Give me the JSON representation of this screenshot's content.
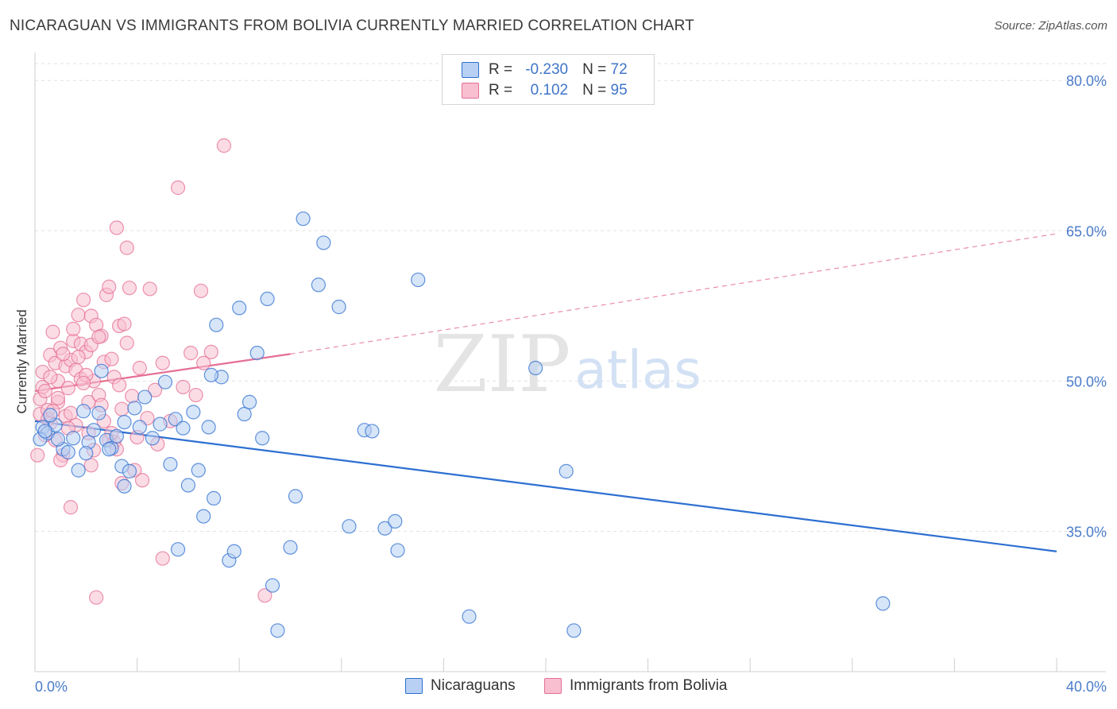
{
  "title": "NICARAGUAN VS IMMIGRANTS FROM BOLIVIA CURRENTLY MARRIED CORRELATION CHART",
  "source": "Source: ZipAtlas.com",
  "watermark": {
    "zip": "ZIP",
    "atlas": "atlas"
  },
  "colors": {
    "blue": "#2e6fd1",
    "blue_fill": "#b7d0f3",
    "pink": "#e56f94",
    "pink_fill": "#f8bfd0",
    "grid": "#e3e3e3",
    "tick": "#4a7cc9"
  },
  "legend": {
    "rows": [
      {
        "r_label": "R =",
        "r_value": "-0.230",
        "n_label": "N =",
        "n_value": "72"
      },
      {
        "r_label": "R =",
        "r_value": "0.102",
        "n_label": "N =",
        "n_value": "95"
      }
    ]
  },
  "bottom_legend": {
    "nicaraguans": "Nicaraguans",
    "bolivia": "Immigrants from Bolivia"
  },
  "chart_data": {
    "type": "scatter",
    "title": "NICARAGUAN VS IMMIGRANTS FROM BOLIVIA CURRENTLY MARRIED CORRELATION CHART",
    "xlabel": "",
    "ylabel": "Currently Married",
    "xlim": [
      0,
      40
    ],
    "ylim": [
      21,
      82
    ],
    "x_ticks": [
      {
        "value": 0,
        "label": "0.0%"
      },
      {
        "value": 40,
        "label": "40.0%"
      }
    ],
    "y_ticks": [
      {
        "value": 35,
        "label": "35.0%"
      },
      {
        "value": 50,
        "label": "50.0%"
      },
      {
        "value": 65,
        "label": "65.0%"
      },
      {
        "value": 80,
        "label": "80.0%"
      }
    ],
    "series": [
      {
        "name": "Nicaraguans",
        "color": "#2e6fd1",
        "fill": "#b7d0f3",
        "trend": {
          "x0": 0,
          "y0": 46.0,
          "x1": 40,
          "y1": 33.0
        },
        "points": [
          [
            0.3,
            45.4
          ],
          [
            0.5,
            44.8
          ],
          [
            0.8,
            45.6
          ],
          [
            1.1,
            43.2
          ],
          [
            1.5,
            44.3
          ],
          [
            1.7,
            41.1
          ],
          [
            2.1,
            43.9
          ],
          [
            2.5,
            46.8
          ],
          [
            2.8,
            44.1
          ],
          [
            3.0,
            43.3
          ],
          [
            3.2,
            44.5
          ],
          [
            3.4,
            41.5
          ],
          [
            3.5,
            39.5
          ],
          [
            3.7,
            41.0
          ],
          [
            3.5,
            45.9
          ],
          [
            3.9,
            47.3
          ],
          [
            4.1,
            45.4
          ],
          [
            4.3,
            48.4
          ],
          [
            4.6,
            44.3
          ],
          [
            4.9,
            45.7
          ],
          [
            5.1,
            49.9
          ],
          [
            5.3,
            41.7
          ],
          [
            5.5,
            46.2
          ],
          [
            5.8,
            45.3
          ],
          [
            6.0,
            39.6
          ],
          [
            6.2,
            46.9
          ],
          [
            6.4,
            41.1
          ],
          [
            6.6,
            36.5
          ],
          [
            6.8,
            45.4
          ],
          [
            7.0,
            38.3
          ],
          [
            7.1,
            55.6
          ],
          [
            7.3,
            50.4
          ],
          [
            7.6,
            32.1
          ],
          [
            7.8,
            33.0
          ],
          [
            8.0,
            57.3
          ],
          [
            8.2,
            46.7
          ],
          [
            8.4,
            47.9
          ],
          [
            8.7,
            52.8
          ],
          [
            8.9,
            44.3
          ],
          [
            9.1,
            58.2
          ],
          [
            9.3,
            29.6
          ],
          [
            9.5,
            25.1
          ],
          [
            10.0,
            33.4
          ],
          [
            10.2,
            38.5
          ],
          [
            10.5,
            66.2
          ],
          [
            11.1,
            59.6
          ],
          [
            11.3,
            63.8
          ],
          [
            11.9,
            57.4
          ],
          [
            12.3,
            35.5
          ],
          [
            12.9,
            45.1
          ],
          [
            13.2,
            45.0
          ],
          [
            13.7,
            35.3
          ],
          [
            14.1,
            36.0
          ],
          [
            14.2,
            33.1
          ],
          [
            15.0,
            60.1
          ],
          [
            17.0,
            26.5
          ],
          [
            19.6,
            51.3
          ],
          [
            20.8,
            41.0
          ],
          [
            21.1,
            25.1
          ],
          [
            33.2,
            27.8
          ],
          [
            0.2,
            44.2
          ],
          [
            0.4,
            45.0
          ],
          [
            0.9,
            44.2
          ],
          [
            1.3,
            42.9
          ],
          [
            2.0,
            42.8
          ],
          [
            2.3,
            45.1
          ],
          [
            2.6,
            51.0
          ],
          [
            2.9,
            43.2
          ],
          [
            6.9,
            50.6
          ],
          [
            5.6,
            33.2
          ],
          [
            0.6,
            46.6
          ],
          [
            1.9,
            47.0
          ]
        ]
      },
      {
        "name": "Immigrants from Bolivia",
        "color": "#e56f94",
        "fill": "#f8bfd0",
        "trend": {
          "x0": 0,
          "y0": 49.0,
          "x1": 10,
          "y1": 52.7
        },
        "trend_extended": {
          "x0": 10,
          "y0": 52.7,
          "x1": 40,
          "y1": 64.7
        },
        "points": [
          [
            0.1,
            42.6
          ],
          [
            0.2,
            46.7
          ],
          [
            0.2,
            48.2
          ],
          [
            0.3,
            49.4
          ],
          [
            0.3,
            50.9
          ],
          [
            0.4,
            44.6
          ],
          [
            0.5,
            47.1
          ],
          [
            0.6,
            45.8
          ],
          [
            0.6,
            52.6
          ],
          [
            0.7,
            54.9
          ],
          [
            0.8,
            51.8
          ],
          [
            0.9,
            50.0
          ],
          [
            0.9,
            47.9
          ],
          [
            1.0,
            53.3
          ],
          [
            1.1,
            42.6
          ],
          [
            1.2,
            51.5
          ],
          [
            1.2,
            46.5
          ],
          [
            1.3,
            49.3
          ],
          [
            1.4,
            52.1
          ],
          [
            1.4,
            37.4
          ],
          [
            1.5,
            54.0
          ],
          [
            1.6,
            45.6
          ],
          [
            1.6,
            51.1
          ],
          [
            1.7,
            56.6
          ],
          [
            1.8,
            53.7
          ],
          [
            1.8,
            50.2
          ],
          [
            1.9,
            58.1
          ],
          [
            2.0,
            52.9
          ],
          [
            2.1,
            47.9
          ],
          [
            2.1,
            44.8
          ],
          [
            2.2,
            53.6
          ],
          [
            2.2,
            56.5
          ],
          [
            2.3,
            50.0
          ],
          [
            2.3,
            43.1
          ],
          [
            2.4,
            55.6
          ],
          [
            2.5,
            48.6
          ],
          [
            2.6,
            54.5
          ],
          [
            2.7,
            51.9
          ],
          [
            2.7,
            46.0
          ],
          [
            2.8,
            58.6
          ],
          [
            2.9,
            44.1
          ],
          [
            2.9,
            59.4
          ],
          [
            3.0,
            52.2
          ],
          [
            3.1,
            50.4
          ],
          [
            3.1,
            43.9
          ],
          [
            3.2,
            65.3
          ],
          [
            3.3,
            49.6
          ],
          [
            3.3,
            55.5
          ],
          [
            3.4,
            39.8
          ],
          [
            3.4,
            47.2
          ],
          [
            3.5,
            55.7
          ],
          [
            3.6,
            53.8
          ],
          [
            3.6,
            63.3
          ],
          [
            3.7,
            59.3
          ],
          [
            3.8,
            48.5
          ],
          [
            3.9,
            41.1
          ],
          [
            4.0,
            44.4
          ],
          [
            4.1,
            51.3
          ],
          [
            4.2,
            40.1
          ],
          [
            4.4,
            46.3
          ],
          [
            4.5,
            59.2
          ],
          [
            4.7,
            49.1
          ],
          [
            5.0,
            51.8
          ],
          [
            5.0,
            32.3
          ],
          [
            5.3,
            46.0
          ],
          [
            5.6,
            69.3
          ],
          [
            5.8,
            49.4
          ],
          [
            6.1,
            52.8
          ],
          [
            6.3,
            48.6
          ],
          [
            6.5,
            59.0
          ],
          [
            6.6,
            51.8
          ],
          [
            6.9,
            52.9
          ],
          [
            7.4,
            73.5
          ],
          [
            9.0,
            28.6
          ],
          [
            2.4,
            28.4
          ],
          [
            0.5,
            46.2
          ],
          [
            0.7,
            47.0
          ],
          [
            1.0,
            42.1
          ],
          [
            1.5,
            55.2
          ],
          [
            1.1,
            52.7
          ],
          [
            0.4,
            49.0
          ],
          [
            0.9,
            48.3
          ],
          [
            2.0,
            50.6
          ],
          [
            2.6,
            47.6
          ],
          [
            3.0,
            44.8
          ],
          [
            1.3,
            45.3
          ],
          [
            0.8,
            44.1
          ],
          [
            1.7,
            52.4
          ],
          [
            2.5,
            54.4
          ],
          [
            3.2,
            43.2
          ],
          [
            0.6,
            50.4
          ],
          [
            1.9,
            49.8
          ],
          [
            4.8,
            43.7
          ],
          [
            2.2,
            41.6
          ],
          [
            1.4,
            46.8
          ]
        ]
      }
    ]
  }
}
